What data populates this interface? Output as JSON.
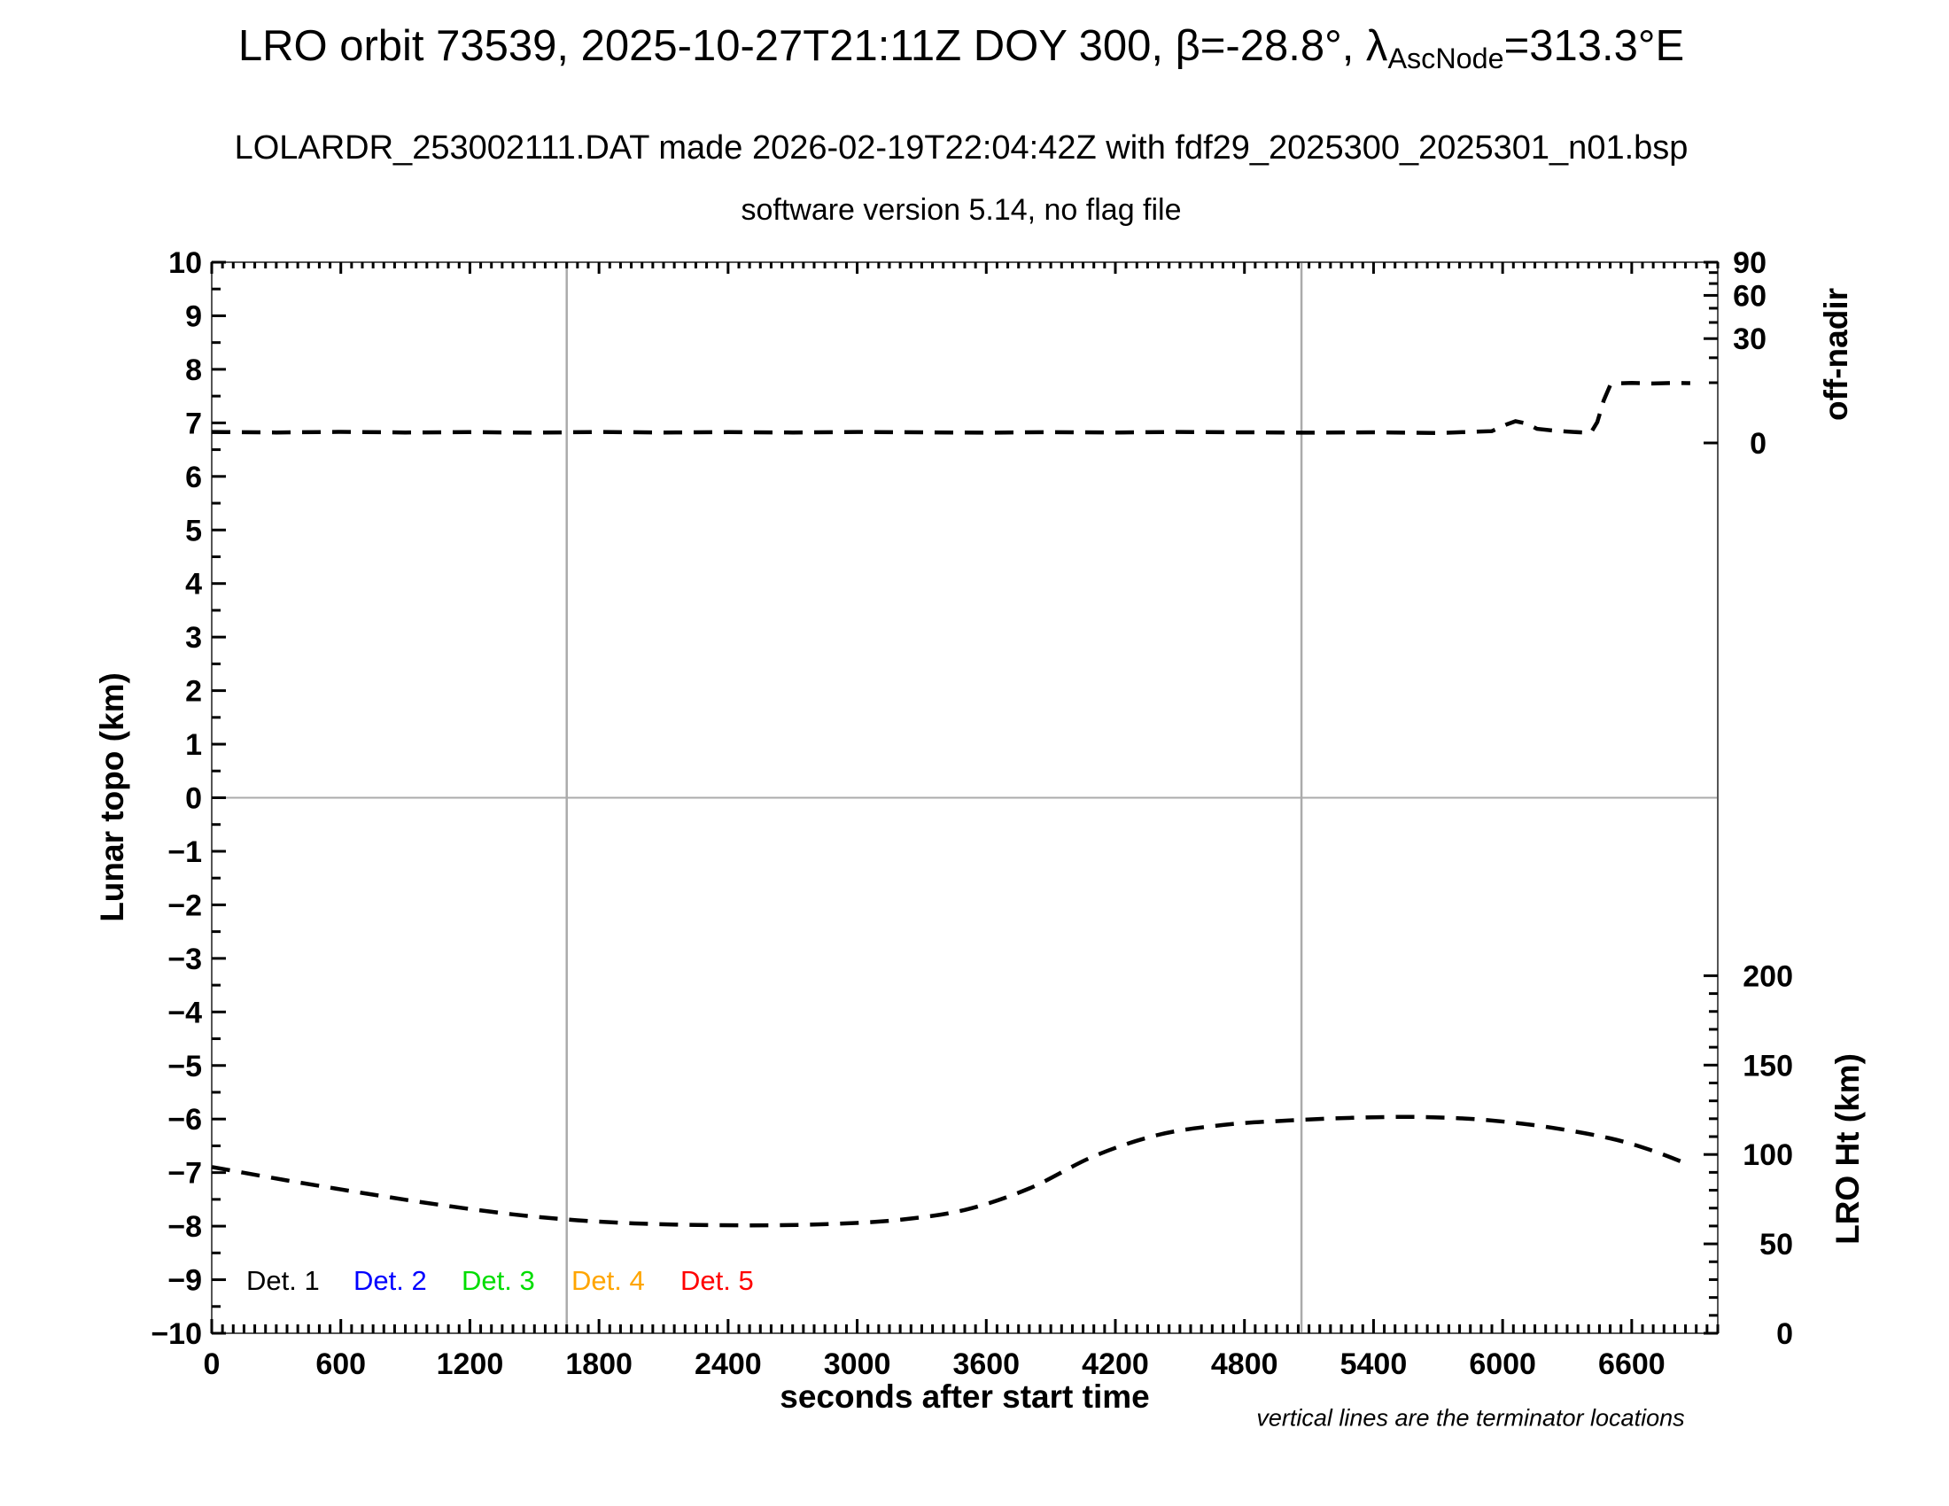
{
  "header": {
    "title1_prefix": "LRO orbit 73539, 2025-10-27T21:11Z DOY 300, β=-28.8°, λ",
    "title1_sub": "AscNode",
    "title1_suffix": "=313.3°E",
    "title2": "LOLARDR_253002111.DAT made 2026-02-19T22:04:42Z with fdf29_2025300_2025301_n01.bsp",
    "title3": "software version 5.14, no flag file"
  },
  "legend": [
    {
      "label": "Det. 1",
      "color": "#000000"
    },
    {
      "label": "Det. 2",
      "color": "#0000ff"
    },
    {
      "label": "Det. 3",
      "color": "#00dd00"
    },
    {
      "label": "Det. 4",
      "color": "#ffa500"
    },
    {
      "label": "Det. 5",
      "color": "#ff0000"
    }
  ],
  "colors": {
    "line": "#000000",
    "terminator": "#ababab",
    "zero_gridline": "#ababab",
    "frame": "#555555",
    "tick": "#000000"
  },
  "chart_data": {
    "type": "line",
    "title": "LRO orbit 73539, 2025-10-27T21:11Z DOY 300, β=-28.8°, λ_AscNode=313.3°E",
    "subtitle1": "LOLARDR_253002111.DAT made 2026-02-19T22:04:42Z with fdf29_2025300_2025301_n01.bsp",
    "subtitle2": "software version 5.14, no flag file",
    "footnote": "vertical lines are the terminator locations",
    "x_axis": {
      "label": "seconds after start time",
      "min": 0,
      "max": 7000,
      "major_ticks": [
        0,
        600,
        1200,
        1800,
        2400,
        3000,
        3600,
        4200,
        4800,
        5400,
        6000,
        6600
      ],
      "minor_tick_step": 50
    },
    "y_left_axis": {
      "label": "Lunar topo (km)",
      "min": -10,
      "max": 10,
      "major_tick_step": 1,
      "minor_tick_step": 0.5
    },
    "y_right_top_axis": {
      "label": "off-nadir",
      "unit": "deg",
      "scale": "sqrt",
      "min": 0,
      "max": 90,
      "major_ticks": [
        0,
        30,
        60,
        90
      ],
      "minor_tick_step": 10
    },
    "y_right_bottom_axis": {
      "label": "LRO Ht (km)",
      "min": 0,
      "max": 200,
      "major_ticks": [
        0,
        50,
        100,
        150,
        200
      ],
      "minor_tick_step": 10
    },
    "terminator_lines_sec": [
      1650,
      5065
    ],
    "grid": {
      "horizontal_zero_line_topo_km": 0
    },
    "series": [
      {
        "name": "off-nadir angle",
        "axis": "right_top",
        "style": "dashed",
        "color": "#000000",
        "points": [
          [
            0,
            0.33
          ],
          [
            300,
            0.3
          ],
          [
            600,
            0.34
          ],
          [
            900,
            0.3
          ],
          [
            1200,
            0.32
          ],
          [
            1500,
            0.29
          ],
          [
            1800,
            0.33
          ],
          [
            2100,
            0.3
          ],
          [
            2400,
            0.32
          ],
          [
            2700,
            0.3
          ],
          [
            3000,
            0.33
          ],
          [
            3300,
            0.31
          ],
          [
            3600,
            0.29
          ],
          [
            3900,
            0.32
          ],
          [
            4200,
            0.3
          ],
          [
            4500,
            0.33
          ],
          [
            4800,
            0.31
          ],
          [
            5100,
            0.29
          ],
          [
            5400,
            0.31
          ],
          [
            5700,
            0.27
          ],
          [
            5950,
            0.38
          ],
          [
            6020,
            0.95
          ],
          [
            6060,
            1.3
          ],
          [
            6110,
            1.05
          ],
          [
            6160,
            0.55
          ],
          [
            6250,
            0.4
          ],
          [
            6330,
            0.33
          ],
          [
            6410,
            0.28
          ],
          [
            6440,
            1.2
          ],
          [
            6470,
            5.0
          ],
          [
            6500,
            9.2
          ],
          [
            6530,
            9.8
          ],
          [
            6600,
            9.9
          ],
          [
            6700,
            9.75
          ],
          [
            6800,
            9.9
          ],
          [
            6872,
            9.85
          ]
        ]
      },
      {
        "name": "LRO height",
        "axis": "right_bottom",
        "style": "dashed",
        "color": "#000000",
        "points": [
          [
            0,
            93
          ],
          [
            350,
            85.5
          ],
          [
            700,
            78.5
          ],
          [
            1050,
            72
          ],
          [
            1400,
            66.5
          ],
          [
            1700,
            63.2
          ],
          [
            2000,
            61.3
          ],
          [
            2300,
            60.5
          ],
          [
            2600,
            60.4
          ],
          [
            2900,
            61.2
          ],
          [
            3200,
            63.5
          ],
          [
            3500,
            69
          ],
          [
            3800,
            81
          ],
          [
            4100,
            99
          ],
          [
            4400,
            111
          ],
          [
            4700,
            116.5
          ],
          [
            5000,
            119
          ],
          [
            5300,
            120.5
          ],
          [
            5600,
            121
          ],
          [
            5900,
            119.5
          ],
          [
            6200,
            115.5
          ],
          [
            6500,
            109
          ],
          [
            6700,
            102
          ],
          [
            6872,
            94
          ]
        ]
      }
    ]
  }
}
